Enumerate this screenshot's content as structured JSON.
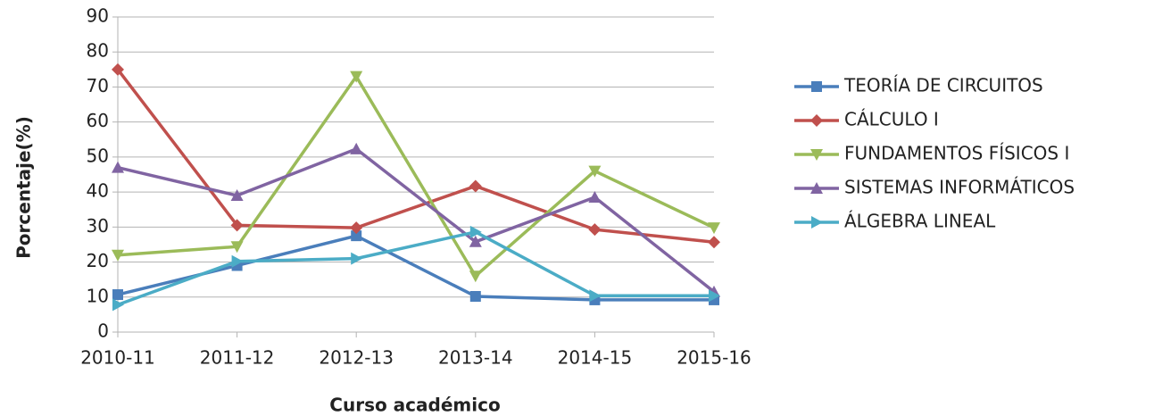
{
  "chart_data": {
    "type": "line",
    "x_label": "Curso académico",
    "y_label": "Porcentaje(%)",
    "categories": [
      "2010-11",
      "2011-12",
      "2012-13",
      "2013-14",
      "2014-15",
      "2015-16"
    ],
    "series": [
      {
        "name": "TEORÍA DE CIRCUITOS",
        "color": "#4a7ebb",
        "marker": "square",
        "values": [
          10.7,
          19,
          27.5,
          10.2,
          9.2,
          9.2
        ]
      },
      {
        "name": "CÁLCULO I",
        "color": "#c0504d",
        "marker": "diamond",
        "values": [
          75,
          30.5,
          29.8,
          41.7,
          29.3,
          25.7
        ]
      },
      {
        "name": "FUNDAMENTOS FÍSICOS I",
        "color": "#9bbb59",
        "marker": "triangle-down",
        "values": [
          22,
          24.4,
          73,
          16,
          46,
          29.8
        ]
      },
      {
        "name": "SISTEMAS INFORMÁTICOS",
        "color": "#8064a2",
        "marker": "triangle-up",
        "values": [
          47,
          39,
          52.3,
          25.8,
          38.5,
          11.5
        ]
      },
      {
        "name": "ÁLGEBRA LINEAL",
        "color": "#4bacc6",
        "marker": "triangle-right",
        "values": [
          7.8,
          20.2,
          21,
          28.6,
          10.4,
          10.4
        ]
      }
    ],
    "ylim": [
      0,
      90
    ],
    "yticks": [
      0,
      10,
      20,
      30,
      40,
      50,
      60,
      70,
      80,
      90
    ],
    "grid": true,
    "legend": "right"
  }
}
